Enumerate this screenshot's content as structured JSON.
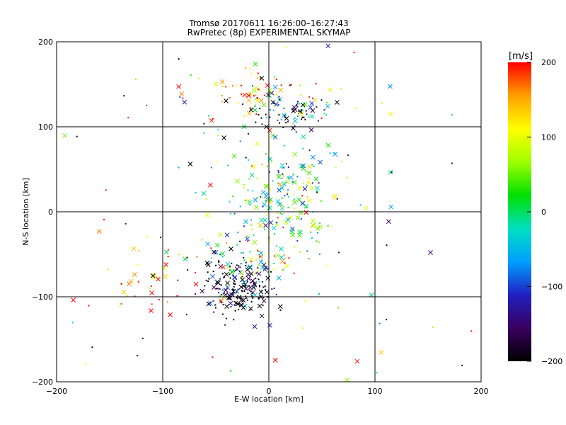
{
  "chart_data": {
    "type": "scatter",
    "title": "Tromsø 20170611 16:26:00–16:27:43",
    "subtitle": "RwPretec (8p) EXPERIMENTAL SKYMAP",
    "xlabel": "E-W location [km]",
    "ylabel": "N-S location [km]",
    "xlim": [
      -200,
      200
    ],
    "ylim": [
      -200,
      200
    ],
    "xticks": [
      "−200",
      "−100",
      "0",
      "100",
      "200"
    ],
    "yticks": [
      "−200",
      "−100",
      "0",
      "100",
      "200"
    ],
    "grid": true,
    "colorbar": {
      "label": "[m/s]",
      "range": [
        -200,
        200
      ],
      "ticks": [
        "−200",
        "−100",
        "0",
        "100",
        "200"
      ],
      "colormap": [
        "#000000",
        "#3a0060",
        "#2020c0",
        "#00a0ff",
        "#00e0c0",
        "#00e000",
        "#a0ff00",
        "#ffff00",
        "#ffa000",
        "#ff0000"
      ]
    },
    "markers": [
      "cross",
      "dot"
    ],
    "clusters": [
      {
        "x": 18,
        "y": 118,
        "sx": 22,
        "sy": 12,
        "n": 90,
        "v": -150,
        "sv": 80
      },
      {
        "x": -20,
        "y": 140,
        "sx": 35,
        "sy": 18,
        "n": 70,
        "v": 150,
        "sv": 60
      },
      {
        "x": 10,
        "y": 10,
        "sx": 28,
        "sy": 28,
        "n": 160,
        "v": 30,
        "sv": 70
      },
      {
        "x": 25,
        "y": 45,
        "sx": 25,
        "sy": 18,
        "n": 50,
        "v": -20,
        "sv": 80
      },
      {
        "x": -28,
        "y": -90,
        "sx": 16,
        "sy": 18,
        "n": 200,
        "v": -190,
        "sv": 70
      },
      {
        "x": -15,
        "y": -55,
        "sx": 30,
        "sy": 15,
        "n": 70,
        "v": 60,
        "sv": 110
      },
      {
        "x": -120,
        "y": -70,
        "sx": 28,
        "sy": 30,
        "n": 40,
        "v": 170,
        "sv": 60
      },
      {
        "x": 0,
        "y": 0,
        "sx": 120,
        "sy": 120,
        "n": 120,
        "v": 0,
        "sv": 200
      }
    ]
  }
}
